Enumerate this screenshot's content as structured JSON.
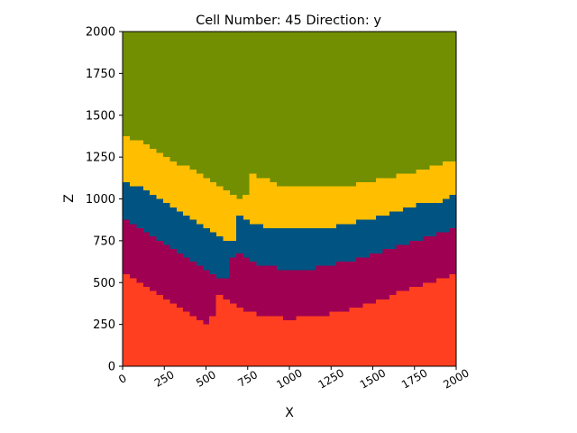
{
  "chart_data": {
    "type": "heatmap",
    "title": "Cell Number: 45 Direction: y",
    "xlabel": "X",
    "ylabel": "Z",
    "xlim": [
      0,
      2000
    ],
    "ylim": [
      0,
      2000
    ],
    "xticks": [
      0,
      250,
      500,
      750,
      1000,
      1250,
      1500,
      1750,
      2000
    ],
    "yticks": [
      0,
      250,
      500,
      750,
      1000,
      1250,
      1500,
      1750,
      2000
    ],
    "colors": {
      "unit_top": "#728f02",
      "unit_2": "#ffbe00",
      "unit_3": "#015482",
      "unit_4": "#9f0052",
      "unit_basement": "#ff3f20"
    },
    "grid": false,
    "cell_width": 40,
    "boundaries": {
      "x": [
        0,
        40,
        80,
        120,
        160,
        200,
        240,
        280,
        320,
        360,
        400,
        440,
        480,
        520,
        560,
        600,
        640,
        680,
        720,
        760,
        800,
        840,
        880,
        920,
        960,
        1000,
        1040,
        1080,
        1120,
        1160,
        1200,
        1240,
        1280,
        1320,
        1360,
        1400,
        1440,
        1480,
        1520,
        1560,
        1600,
        1640,
        1680,
        1720,
        1760,
        1800,
        1840,
        1880,
        1920,
        1960,
        2000
      ],
      "green_yellow": [
        1375,
        1350,
        1350,
        1325,
        1300,
        1275,
        1250,
        1225,
        1200,
        1200,
        1175,
        1150,
        1125,
        1100,
        1075,
        1050,
        1025,
        1000,
        1025,
        1150,
        1125,
        1125,
        1100,
        1075,
        1075,
        1075,
        1075,
        1075,
        1075,
        1075,
        1075,
        1075,
        1075,
        1075,
        1075,
        1100,
        1100,
        1100,
        1125,
        1125,
        1125,
        1150,
        1150,
        1150,
        1175,
        1175,
        1200,
        1200,
        1225,
        1225
      ],
      "yellow_blue": [
        1100,
        1075,
        1075,
        1050,
        1025,
        1000,
        975,
        950,
        925,
        900,
        875,
        850,
        825,
        800,
        775,
        750,
        750,
        900,
        875,
        850,
        850,
        825,
        825,
        825,
        825,
        825,
        825,
        825,
        825,
        825,
        825,
        825,
        850,
        850,
        850,
        875,
        875,
        875,
        900,
        900,
        925,
        925,
        950,
        950,
        975,
        975,
        975,
        975,
        1000,
        1025
      ],
      "blue_purple": [
        875,
        850,
        825,
        800,
        775,
        750,
        725,
        700,
        675,
        650,
        625,
        600,
        575,
        550,
        525,
        525,
        650,
        675,
        650,
        625,
        600,
        600,
        600,
        575,
        575,
        575,
        575,
        575,
        575,
        600,
        600,
        600,
        625,
        625,
        625,
        650,
        650,
        675,
        675,
        700,
        700,
        725,
        725,
        750,
        750,
        775,
        775,
        800,
        800,
        825
      ],
      "purple_red": [
        550,
        525,
        500,
        475,
        450,
        425,
        400,
        375,
        350,
        325,
        300,
        275,
        250,
        300,
        425,
        400,
        375,
        350,
        325,
        325,
        300,
        300,
        300,
        300,
        275,
        275,
        300,
        300,
        300,
        300,
        300,
        325,
        325,
        325,
        350,
        350,
        375,
        375,
        400,
        400,
        425,
        450,
        450,
        475,
        475,
        500,
        500,
        525,
        525,
        550
      ]
    }
  }
}
